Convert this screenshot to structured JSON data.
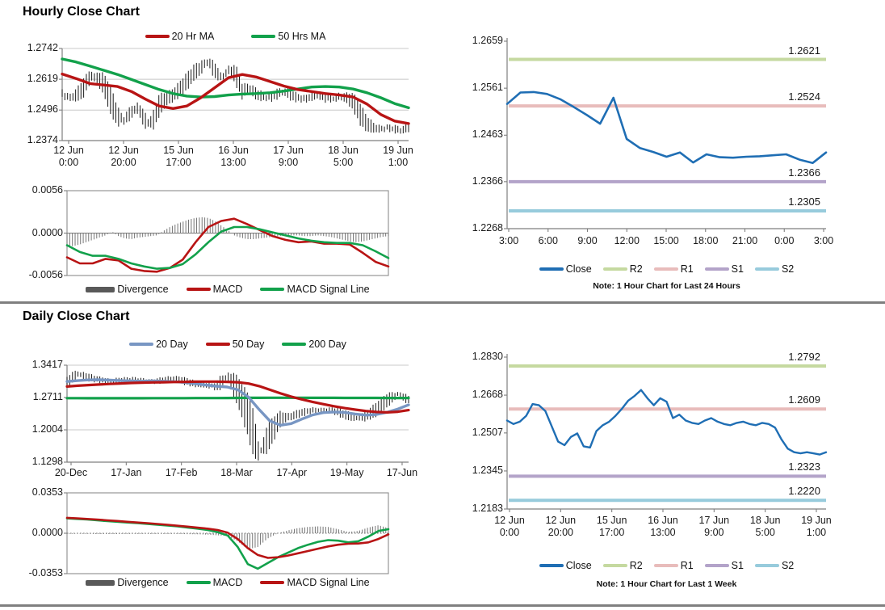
{
  "sections": {
    "hourly": {
      "title": "Hourly Close Chart"
    },
    "daily": {
      "title": "Daily Close Chart"
    }
  },
  "colors": {
    "price_bar": "#1a1a1a",
    "red_line": "#b81414",
    "green_line": "#12a14b",
    "blue_close": "#1f6eb4",
    "blue_20day": "#7896c3",
    "divergence_bar": "#757575",
    "divergence_swatch": "#595959",
    "r2": "#c5d9a0",
    "r1": "#e8bcbb",
    "s1": "#b3a3c9",
    "s2": "#97cbdc",
    "axis": "#7f7f7f",
    "grid": "#c8c8c8"
  },
  "chart_data": [
    {
      "id": "hourly_price",
      "type": "bar",
      "title": "Hourly Close Chart",
      "ylim": [
        1.2374,
        1.2742
      ],
      "y_ticks": [
        "1.2742",
        "1.2619",
        "1.2496",
        "1.2374"
      ],
      "x_ticks": [
        [
          "12 Jun",
          "0:00"
        ],
        [
          "12 Jun",
          "20:00"
        ],
        [
          "15 Jun",
          "17:00"
        ],
        [
          "16 Jun",
          "13:00"
        ],
        [
          "17 Jun",
          "9:00"
        ],
        [
          "18 Jun",
          "5:00"
        ],
        [
          "19 Jun",
          "1:00"
        ]
      ],
      "legend": [
        {
          "label": "20 Hr MA",
          "color": "#b81414"
        },
        {
          "label": "50 Hrs MA",
          "color": "#12a14b"
        }
      ],
      "series": [
        {
          "name": "Close",
          "kind": "hlc_bars",
          "color": "#1a1a1a",
          "values": [
            1.256,
            1.2545,
            1.2555,
            1.258,
            1.263,
            1.2625,
            1.26,
            1.2535,
            1.247,
            1.2455,
            1.249,
            1.2505,
            1.245,
            1.2445,
            1.2515,
            1.254,
            1.2555,
            1.258,
            1.261,
            1.2645,
            1.2665,
            1.269,
            1.2655,
            1.2625,
            1.2655,
            1.264,
            1.257,
            1.2585,
            1.256,
            1.255,
            1.2545,
            1.256,
            1.257,
            1.2555,
            1.2545,
            1.254,
            1.255,
            1.2555,
            1.2545,
            1.254,
            1.255,
            1.2545,
            1.253,
            1.248,
            1.244,
            1.2425,
            1.242,
            1.2425,
            1.242,
            1.2415,
            1.2425
          ]
        },
        {
          "name": "50 Hrs MA",
          "kind": "line",
          "color": "#12a14b",
          "width": 3.4,
          "values": [
            1.27,
            1.2688,
            1.2672,
            1.2655,
            1.2638,
            1.2618,
            1.2598,
            1.2578,
            1.2562,
            1.2552,
            1.2548,
            1.255,
            1.2556,
            1.256,
            1.2562,
            1.2565,
            1.2572,
            1.258,
            1.2588,
            1.259,
            1.2588,
            1.258,
            1.2565,
            1.2545,
            1.2522,
            1.2505
          ]
        },
        {
          "name": "20 Hr MA",
          "kind": "line",
          "color": "#b81414",
          "width": 3.4,
          "values": [
            1.264,
            1.2622,
            1.2602,
            1.2596,
            1.259,
            1.257,
            1.254,
            1.2512,
            1.2502,
            1.2512,
            1.2545,
            1.2585,
            1.2625,
            1.2638,
            1.2628,
            1.261,
            1.2592,
            1.2578,
            1.257,
            1.2562,
            1.2556,
            1.2548,
            1.252,
            1.2478,
            1.2452,
            1.2442
          ]
        }
      ]
    },
    {
      "id": "hourly_macd",
      "type": "bar",
      "ylim": [
        -0.0056,
        0.0056
      ],
      "y_ticks": [
        "0.0056",
        "0.0000",
        "-0.0056"
      ],
      "legend": [
        {
          "label": "Divergence",
          "color": "#595959",
          "swatch": "bar"
        },
        {
          "label": "MACD",
          "color": "#b81414"
        },
        {
          "label": "MACD Signal Line",
          "color": "#12a14b"
        }
      ],
      "series": [
        {
          "name": "Divergence",
          "kind": "bars",
          "color": "#757575",
          "values": [
            -0.0018,
            -0.0017,
            -0.0015,
            -0.0012,
            -0.0009,
            -0.0006,
            -0.0003,
            0.0002,
            -0.0004,
            -0.0007,
            -0.0008,
            -0.0006,
            -0.0005,
            -0.0004,
            -0.0003,
            0.0003,
            0.0008,
            0.0012,
            0.0015,
            0.0018,
            0.002,
            0.0021,
            0.002,
            0.0016,
            0.001,
            0.0004,
            -0.0003,
            -0.0006,
            -0.0008,
            -0.0008,
            -0.0007,
            -0.0006,
            -0.0005,
            -0.0004,
            -0.0003,
            -0.0003,
            -0.0003,
            -0.0004,
            -0.0004,
            -0.0003,
            -0.0004,
            -0.0005,
            -0.0007,
            -0.0009,
            -0.0011,
            -0.0012,
            -0.0011,
            -0.0009,
            -0.0007,
            -0.0005,
            -0.0004
          ]
        },
        {
          "name": "MACD",
          "kind": "line",
          "color": "#b81414",
          "width": 2.6,
          "values": [
            -0.0032,
            -0.004,
            -0.004,
            -0.0034,
            -0.0036,
            -0.0047,
            -0.005,
            -0.0051,
            -0.0046,
            -0.0035,
            -0.0012,
            0.0008,
            0.0016,
            0.0019,
            0.0012,
            0.0004,
            -0.0004,
            -0.0009,
            -0.0012,
            -0.0011,
            -0.0014,
            -0.0014,
            -0.0015,
            -0.0026,
            -0.0038,
            -0.0044
          ]
        },
        {
          "name": "MACD Signal Line",
          "kind": "line",
          "color": "#12a14b",
          "width": 2.6,
          "values": [
            -0.0016,
            -0.0025,
            -0.003,
            -0.003,
            -0.0034,
            -0.004,
            -0.0044,
            -0.0047,
            -0.0046,
            -0.0041,
            -0.0028,
            -0.0012,
            0.0002,
            0.0008,
            0.0008,
            0.0005,
            0.0001,
            -0.0003,
            -0.0007,
            -0.001,
            -0.0012,
            -0.0013,
            -0.0013,
            -0.0016,
            -0.0024,
            -0.0033
          ]
        }
      ]
    },
    {
      "id": "close_24h",
      "type": "line",
      "note": "Note: 1 Hour Chart for Last 24 Hours",
      "ylim": [
        1.2268,
        1.2659
      ],
      "y_ticks": [
        "1.2659",
        "1.2561",
        "1.2463",
        "1.2366",
        "1.2268"
      ],
      "x_ticks": [
        "3:00",
        "6:00",
        "9:00",
        "12:00",
        "15:00",
        "18:00",
        "21:00",
        "0:00",
        "3:00"
      ],
      "legend": [
        {
          "label": "Close",
          "color": "#1f6eb4"
        },
        {
          "label": "R2",
          "color": "#c5d9a0"
        },
        {
          "label": "R1",
          "color": "#e8bcbb"
        },
        {
          "label": "S1",
          "color": "#b3a3c9"
        },
        {
          "label": "S2",
          "color": "#97cbdc"
        }
      ],
      "levels": [
        {
          "name": "R2",
          "label": "1.2621",
          "value": 1.2621,
          "color": "#c5d9a0"
        },
        {
          "name": "R1",
          "label": "1.2524",
          "value": 1.2524,
          "color": "#e8bcbb"
        },
        {
          "name": "S1",
          "label": "1.2366",
          "value": 1.2366,
          "color": "#b3a3c9"
        },
        {
          "name": "S2",
          "label": "1.2305",
          "value": 1.2305,
          "color": "#97cbdc"
        }
      ],
      "series": [
        {
          "name": "Close",
          "kind": "line",
          "color": "#1f6eb4",
          "width": 2.6,
          "values": [
            1.2528,
            1.2552,
            1.2553,
            1.2549,
            1.2538,
            1.2522,
            1.2505,
            1.2487,
            1.2541,
            1.2455,
            1.2436,
            1.2428,
            1.2418,
            1.2427,
            1.2406,
            1.2423,
            1.2417,
            1.2416,
            1.2418,
            1.2419,
            1.2421,
            1.2423,
            1.2412,
            1.2405,
            1.2427
          ]
        }
      ]
    },
    {
      "id": "daily_price",
      "type": "bar",
      "title": "Daily Close Chart",
      "ylim": [
        1.1298,
        1.3417
      ],
      "y_ticks": [
        "1.3417",
        "1.2711",
        "1.2004",
        "1.1298"
      ],
      "x_ticks": [
        "20-Dec",
        "17-Jan",
        "17-Feb",
        "18-Mar",
        "17-Apr",
        "19-May",
        "17-Jun"
      ],
      "legend": [
        {
          "label": "20 Day",
          "color": "#7896c3"
        },
        {
          "label": "50 Day",
          "color": "#b81414"
        },
        {
          "label": "200 Day",
          "color": "#12a14b"
        }
      ],
      "series": [
        {
          "name": "Close",
          "kind": "hlc_bars",
          "color": "#1a1a1a",
          "values": [
            1.306,
            1.323,
            1.315,
            1.31,
            1.307,
            1.309,
            1.311,
            1.3075,
            1.306,
            1.309,
            1.313,
            1.307,
            1.301,
            1.2985,
            1.295,
            1.318,
            1.285,
            1.23,
            1.148,
            1.19,
            1.225,
            1.23,
            1.238,
            1.243,
            1.244,
            1.242,
            1.234,
            1.225,
            1.23,
            1.245,
            1.265,
            1.278,
            1.266
          ]
        },
        {
          "name": "200 Day",
          "kind": "line",
          "color": "#12a14b",
          "width": 3.2,
          "values": [
            1.2697,
            1.2696,
            1.2695,
            1.2695,
            1.2694,
            1.2694,
            1.2695,
            1.2695,
            1.2696,
            1.2696,
            1.2697,
            1.2697,
            1.2698,
            1.2698,
            1.2699,
            1.27,
            1.2702,
            1.2703,
            1.2704,
            1.2705,
            1.2705,
            1.2705,
            1.2704,
            1.2704,
            1.2703,
            1.2703,
            1.2702,
            1.2702,
            1.2701,
            1.2701,
            1.27,
            1.27,
            1.27
          ]
        },
        {
          "name": "20 Day",
          "kind": "line",
          "color": "#7896c3",
          "width": 3.4,
          "values": [
            1.306,
            1.308,
            1.3095,
            1.31,
            1.309,
            1.308,
            1.3072,
            1.3068,
            1.3072,
            1.3068,
            1.3058,
            1.304,
            1.3012,
            1.2985,
            1.2958,
            1.294,
            1.288,
            1.272,
            1.245,
            1.22,
            1.2105,
            1.214,
            1.224,
            1.233,
            1.238,
            1.2395,
            1.2385,
            1.235,
            1.2325,
            1.234,
            1.239,
            1.246,
            1.255
          ]
        },
        {
          "name": "50 Day",
          "kind": "line",
          "color": "#b81414",
          "width": 3.2,
          "values": [
            1.295,
            1.2968,
            1.2982,
            1.2995,
            1.3008,
            1.3018,
            1.3028,
            1.3035,
            1.304,
            1.3045,
            1.305,
            1.3054,
            1.3056,
            1.3058,
            1.3058,
            1.3054,
            1.3044,
            1.3016,
            1.296,
            1.288,
            1.28,
            1.273,
            1.267,
            1.2615,
            1.2565,
            1.252,
            1.248,
            1.2445,
            1.2415,
            1.2395,
            1.2385,
            1.24,
            1.2435
          ]
        }
      ]
    },
    {
      "id": "daily_macd",
      "type": "bar",
      "ylim": [
        -0.0353,
        0.0353
      ],
      "y_ticks": [
        "0.0353",
        "0.0000",
        "-0.0353"
      ],
      "legend": [
        {
          "label": "Divergence",
          "color": "#595959",
          "swatch": "bar"
        },
        {
          "label": "MACD",
          "color": "#12a14b"
        },
        {
          "label": "MACD Signal Line",
          "color": "#b81414"
        }
      ],
      "series": [
        {
          "name": "Divergence",
          "kind": "bars",
          "color": "#757575",
          "values": [
            -0.0005,
            -0.0005,
            -0.0005,
            -0.0007,
            -0.0007,
            -0.0007,
            -0.0006,
            -0.0006,
            -0.0006,
            -0.0006,
            -0.0006,
            -0.0006,
            -0.0008,
            -0.0009,
            -0.0012,
            -0.0018,
            -0.0025,
            -0.007,
            -0.014,
            -0.012,
            -0.0045,
            0.0,
            0.0025,
            0.0045,
            0.0055,
            0.006,
            0.0055,
            0.0035,
            0.0012,
            0.002,
            0.005,
            0.007,
            0.0045
          ]
        },
        {
          "name": "MACD",
          "kind": "line",
          "color": "#12a14b",
          "width": 2.6,
          "values": [
            0.013,
            0.0125,
            0.012,
            0.0113,
            0.0106,
            0.01,
            0.0094,
            0.0088,
            0.0082,
            0.0075,
            0.0068,
            0.006,
            0.005,
            0.004,
            0.0028,
            0.001,
            -0.002,
            -0.012,
            -0.027,
            -0.031,
            -0.026,
            -0.021,
            -0.017,
            -0.013,
            -0.01,
            -0.0075,
            -0.006,
            -0.0065,
            -0.008,
            -0.007,
            -0.003,
            0.002,
            0.0035
          ]
        },
        {
          "name": "MACD Signal Line",
          "kind": "line",
          "color": "#b81414",
          "width": 2.6,
          "values": [
            0.0135,
            0.013,
            0.0125,
            0.012,
            0.0113,
            0.0107,
            0.01,
            0.0094,
            0.0088,
            0.0081,
            0.0074,
            0.0066,
            0.0058,
            0.0049,
            0.004,
            0.0028,
            0.0005,
            -0.005,
            -0.013,
            -0.019,
            -0.0215,
            -0.021,
            -0.0195,
            -0.0175,
            -0.0155,
            -0.0135,
            -0.0115,
            -0.01,
            -0.0092,
            -0.009,
            -0.008,
            -0.005,
            -0.001
          ]
        }
      ]
    },
    {
      "id": "close_week",
      "type": "line",
      "note": "Note: 1 Hour Chart for Last 1 Week",
      "ylim": [
        1.2183,
        1.283
      ],
      "y_ticks": [
        "1.2830",
        "1.2668",
        "1.2507",
        "1.2345",
        "1.2183"
      ],
      "x_ticks": [
        [
          "12 Jun",
          "0:00"
        ],
        [
          "12 Jun",
          "20:00"
        ],
        [
          "15 Jun",
          "17:00"
        ],
        [
          "16 Jun",
          "13:00"
        ],
        [
          "17 Jun",
          "9:00"
        ],
        [
          "18 Jun",
          "5:00"
        ],
        [
          "19 Jun",
          "1:00"
        ]
      ],
      "legend": [
        {
          "label": "Close",
          "color": "#1f6eb4"
        },
        {
          "label": "R2",
          "color": "#c5d9a0"
        },
        {
          "label": "R1",
          "color": "#e8bcbb"
        },
        {
          "label": "S1",
          "color": "#b3a3c9"
        },
        {
          "label": "S2",
          "color": "#97cbdc"
        }
      ],
      "levels": [
        {
          "name": "R2",
          "label": "1.2792",
          "value": 1.2792,
          "color": "#c5d9a0"
        },
        {
          "name": "R1",
          "label": "1.2609",
          "value": 1.2609,
          "color": "#e8bcbb"
        },
        {
          "name": "S1",
          "label": "1.2323",
          "value": 1.2323,
          "color": "#b3a3c9"
        },
        {
          "name": "S2",
          "label": "1.2220",
          "value": 1.222,
          "color": "#97cbdc"
        }
      ],
      "series": [
        {
          "name": "Close",
          "kind": "line",
          "color": "#1f6eb4",
          "width": 2.4,
          "values": [
            1.256,
            1.2545,
            1.2555,
            1.258,
            1.263,
            1.2625,
            1.26,
            1.2535,
            1.247,
            1.2455,
            1.249,
            1.2505,
            1.245,
            1.2445,
            1.2515,
            1.254,
            1.2555,
            1.258,
            1.261,
            1.2645,
            1.2665,
            1.269,
            1.2655,
            1.2625,
            1.2655,
            1.264,
            1.257,
            1.2585,
            1.256,
            1.255,
            1.2545,
            1.256,
            1.257,
            1.2555,
            1.2545,
            1.254,
            1.255,
            1.2555,
            1.2545,
            1.254,
            1.255,
            1.2545,
            1.253,
            1.248,
            1.244,
            1.2425,
            1.242,
            1.2425,
            1.242,
            1.2415,
            1.2425
          ]
        }
      ]
    }
  ]
}
